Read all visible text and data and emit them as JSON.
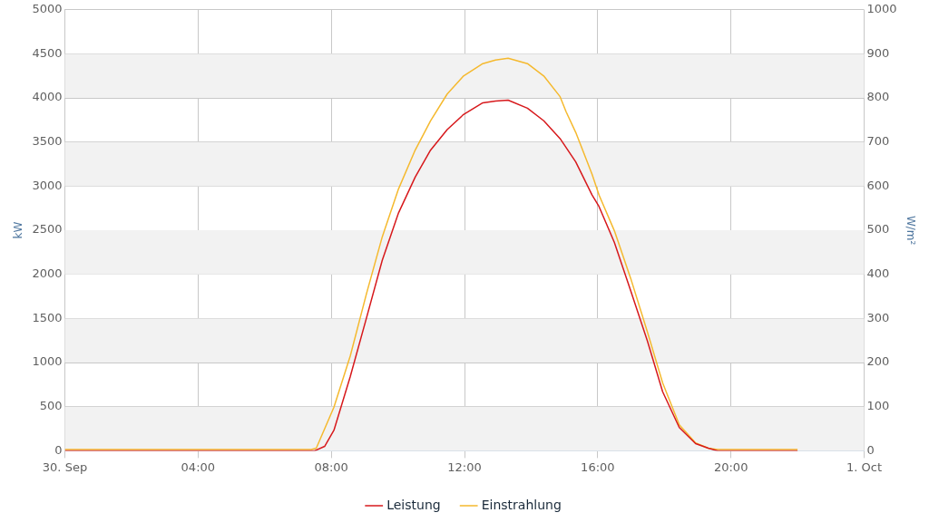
{
  "chart_data": {
    "type": "line",
    "ylabel": "kW",
    "y2label": "W/m²",
    "legend": "bottom",
    "grid": true,
    "marker": "none",
    "line_style": "solid",
    "xlim": [
      0,
      24
    ],
    "xticks": [
      {
        "value": 0,
        "label": "30. Sep"
      },
      {
        "value": 4,
        "label": "04:00"
      },
      {
        "value": 8,
        "label": "08:00"
      },
      {
        "value": 12,
        "label": "12:00"
      },
      {
        "value": 16,
        "label": "16:00"
      },
      {
        "value": 20,
        "label": "20:00"
      },
      {
        "value": 24,
        "label": "1. Oct"
      }
    ],
    "ylim": [
      0,
      5000
    ],
    "yticks": [
      0,
      500,
      1000,
      1500,
      2000,
      2500,
      3000,
      3500,
      4000,
      4500,
      5000
    ],
    "y2lim": [
      0,
      1000
    ],
    "y2ticks": [
      0,
      100,
      200,
      300,
      400,
      500,
      600,
      700,
      800,
      900,
      1000
    ],
    "bands": [
      {
        "axis": "y",
        "from": 0,
        "to": 500,
        "color": "#f2f2f2"
      },
      {
        "axis": "y",
        "from": 1000,
        "to": 1500,
        "color": "#f2f2f2"
      },
      {
        "axis": "y",
        "from": 2000,
        "to": 2500,
        "color": "#f2f2f2"
      },
      {
        "axis": "y",
        "from": 3000,
        "to": 3500,
        "color": "#f2f2f2"
      },
      {
        "axis": "y",
        "from": 4000,
        "to": 4500,
        "color": "#f2f2f2"
      }
    ],
    "series": [
      {
        "name": "Leistung",
        "color": "#d7191c",
        "x": [
          0,
          7.5,
          7.8,
          8.08,
          8.57,
          9.06,
          9.53,
          10.02,
          10.52,
          10.98,
          11.48,
          11.97,
          12.55,
          12.93,
          13.31,
          13.89,
          14.38,
          14.87,
          15.34,
          15.83,
          16.04,
          16.5,
          16.99,
          17.49,
          17.95,
          18.45,
          18.94,
          19.32,
          19.6,
          22
        ],
        "values": [
          0,
          0,
          50,
          233,
          842,
          1511,
          2160,
          2698,
          3103,
          3408,
          3641,
          3813,
          3945,
          3966,
          3976,
          3884,
          3742,
          3540,
          3276,
          2900,
          2769,
          2363,
          1815,
          1247,
          669,
          264,
          81,
          30,
          0,
          0
        ]
      },
      {
        "name": "Einstrahlung",
        "color": "#f5b92e",
        "axis": "y2",
        "x": [
          0,
          7.4,
          7.55,
          8.08,
          8.57,
          9.06,
          9.53,
          10.02,
          10.52,
          10.98,
          11.48,
          11.97,
          12.55,
          12.93,
          13.31,
          13.89,
          14.38,
          14.87,
          15.05,
          15.34,
          15.83,
          16.04,
          16.5,
          16.99,
          17.49,
          17.95,
          18.45,
          18.94,
          19.32,
          19.6,
          22
        ],
        "values": [
          3,
          3,
          6,
          99,
          215,
          357,
          485,
          594,
          682,
          748,
          809,
          850,
          878,
          886,
          890,
          878,
          850,
          803,
          769,
          722,
          627,
          580,
          499,
          391,
          270,
          154,
          59,
          18,
          6,
          3,
          3
        ]
      }
    ]
  }
}
